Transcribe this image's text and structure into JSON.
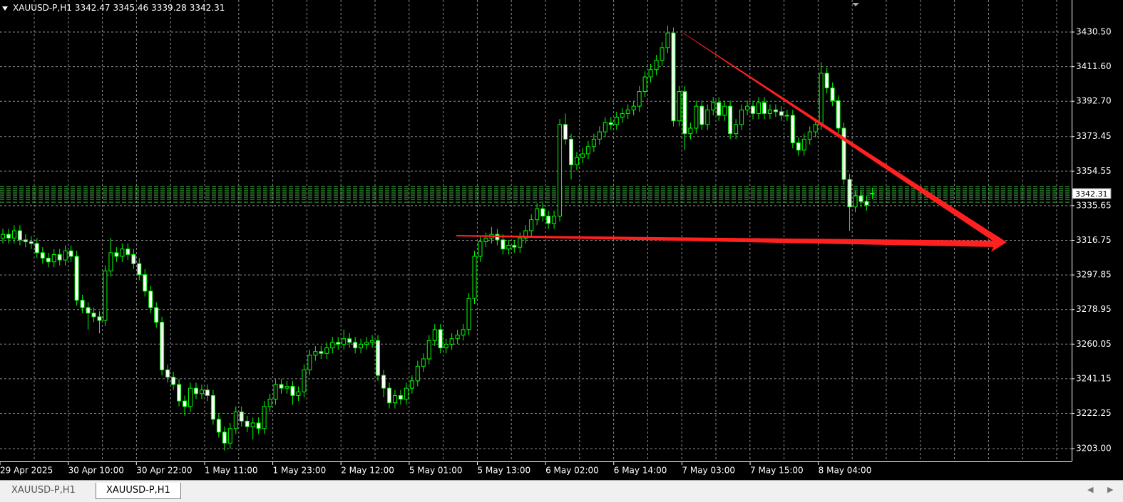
{
  "tabs": [
    "XAUUSD-P,H1",
    "XAUUSD-P,H1"
  ],
  "chart_data": {
    "type": "candlestick",
    "title": "XAUUSD-P,H1",
    "categories": [
      "29 Apr 2025",
      null,
      null,
      null,
      null,
      null,
      null,
      null,
      null,
      null,
      null,
      null,
      "30 Apr 10:00",
      null,
      null,
      null,
      null,
      null,
      null,
      null,
      null,
      null,
      null,
      null,
      "30 Apr 22:00",
      null,
      null,
      null,
      null,
      null,
      null,
      null,
      null,
      null,
      null,
      null,
      "1 May 11:00",
      null,
      null,
      null,
      null,
      null,
      null,
      null,
      null,
      null,
      null,
      null,
      "1 May 23:00",
      null,
      null,
      null,
      null,
      null,
      null,
      null,
      null,
      null,
      null,
      null,
      "2 May 12:00",
      null,
      null,
      null,
      null,
      null,
      null,
      null,
      null,
      null,
      null,
      null,
      "5 May 01:00",
      null,
      null,
      null,
      null,
      null,
      null,
      null,
      null,
      null,
      null,
      null,
      "5 May 13:00",
      null,
      null,
      null,
      null,
      null,
      null,
      null,
      null,
      null,
      null,
      null,
      "6 May 02:00",
      null,
      null,
      null,
      null,
      null,
      null,
      null,
      null,
      null,
      null,
      null,
      "6 May 14:00",
      null,
      null,
      null,
      null,
      null,
      null,
      null,
      null,
      null,
      null,
      null,
      "7 May 03:00",
      null,
      null,
      null,
      null,
      null,
      null,
      null,
      null,
      null,
      null,
      null,
      "7 May 15:00",
      null,
      null,
      null,
      null,
      null,
      null,
      null,
      null,
      null,
      null,
      null,
      "8 May 04:00",
      null,
      null,
      null,
      null,
      null,
      null,
      null,
      null,
      null
    ],
    "open": [
      3318,
      3320,
      3318,
      3322,
      3317,
      3316,
      3315,
      3310,
      3307,
      3305,
      3309,
      3306,
      3311,
      3308,
      3284,
      3280,
      3277,
      3275,
      3273,
      3300,
      3310,
      3308,
      3312,
      3309,
      3304,
      3298,
      3289,
      3280,
      3272,
      3246,
      3242,
      3238,
      3229,
      3226,
      3236,
      3233,
      3235,
      3232,
      3219,
      3212,
      3206,
      3214,
      3223,
      3218,
      3215,
      3217,
      3214,
      3226,
      3230,
      3238,
      3236,
      3237,
      3232,
      3234,
      3246,
      3254,
      3256,
      3255,
      3258,
      3261,
      3260,
      3263,
      3261,
      3258,
      3260,
      3261,
      3262,
      3243,
      3236,
      3228,
      3232,
      3230,
      3236,
      3240,
      3248,
      3252,
      3262,
      3268,
      3258,
      3260,
      3263,
      3265,
      3268,
      3285,
      3308,
      3316,
      3318,
      3320,
      3317,
      3312,
      3314,
      3313,
      3318,
      3322,
      3328,
      3334,
      3330,
      3326,
      3330,
      3380,
      3372,
      3358,
      3362,
      3364,
      3368,
      3372,
      3376,
      3381,
      3380,
      3384,
      3386,
      3388,
      3390,
      3398,
      3406,
      3410,
      3415,
      3422,
      3430,
      3382,
      3398,
      3375,
      3378,
      3390,
      3380,
      3388,
      3392,
      3385,
      3390,
      3375,
      3380,
      3388,
      3390,
      3386,
      3392,
      3386,
      3388,
      3387,
      3385,
      3385,
      3370,
      3366,
      3372,
      3376,
      3380,
      3408,
      3400,
      3393,
      3378,
      3350,
      3335,
      3341,
      3338,
      3342.47
    ],
    "high": [
      3323,
      3323,
      3325,
      3325,
      3320,
      3319,
      3318,
      3313,
      3310,
      3312,
      3312,
      3314,
      3314,
      3311,
      3287,
      3283,
      3280,
      3278,
      3303,
      3318,
      3313,
      3315,
      3315,
      3312,
      3307,
      3301,
      3292,
      3283,
      3275,
      3249,
      3245,
      3241,
      3232,
      3239,
      3239,
      3238,
      3238,
      3235,
      3222,
      3215,
      3217,
      3226,
      3226,
      3221,
      3220,
      3220,
      3229,
      3233,
      3241,
      3241,
      3240,
      3240,
      3237,
      3249,
      3257,
      3259,
      3259,
      3261,
      3264,
      3264,
      3268,
      3266,
      3264,
      3263,
      3264,
      3265,
      3265,
      3246,
      3239,
      3235,
      3235,
      3239,
      3243,
      3251,
      3255,
      3265,
      3271,
      3271,
      3263,
      3266,
      3268,
      3271,
      3288,
      3311,
      3319,
      3321,
      3324,
      3323,
      3320,
      3317,
      3317,
      3321,
      3325,
      3331,
      3337,
      3337,
      3333,
      3333,
      3383,
      3386,
      3375,
      3365,
      3367,
      3371,
      3375,
      3379,
      3384,
      3384,
      3387,
      3389,
      3391,
      3393,
      3401,
      3409,
      3413,
      3418,
      3425,
      3434,
      3433,
      3401,
      3401,
      3381,
      3393,
      3393,
      3391,
      3395,
      3395,
      3393,
      3393,
      3383,
      3391,
      3393,
      3393,
      3395,
      3395,
      3391,
      3391,
      3390,
      3388,
      3388,
      3373,
      3375,
      3379,
      3383,
      3414,
      3411,
      3403,
      3396,
      3381,
      3353,
      3344,
      3344,
      3341,
      3345.46
    ],
    "low": [
      3315,
      3315,
      3315,
      3314,
      3313,
      3312,
      3307,
      3304,
      3302,
      3302,
      3303,
      3303,
      3305,
      3281,
      3277,
      3268,
      3272,
      3266,
      3270,
      3297,
      3305,
      3305,
      3306,
      3301,
      3295,
      3286,
      3277,
      3269,
      3243,
      3239,
      3235,
      3226,
      3221,
      3223,
      3230,
      3230,
      3229,
      3216,
      3209,
      3202,
      3203,
      3211,
      3215,
      3212,
      3208,
      3211,
      3211,
      3223,
      3227,
      3233,
      3233,
      3227,
      3229,
      3231,
      3243,
      3251,
      3252,
      3252,
      3255,
      3257,
      3257,
      3258,
      3255,
      3255,
      3257,
      3258,
      3240,
      3231,
      3225,
      3225,
      3227,
      3227,
      3233,
      3237,
      3245,
      3249,
      3259,
      3255,
      3255,
      3257,
      3260,
      3262,
      3265,
      3282,
      3305,
      3313,
      3315,
      3314,
      3309,
      3309,
      3310,
      3310,
      3315,
      3319,
      3325,
      3327,
      3323,
      3323,
      3327,
      3369,
      3350,
      3355,
      3359,
      3361,
      3365,
      3369,
      3373,
      3377,
      3377,
      3381,
      3383,
      3385,
      3387,
      3395,
      3403,
      3407,
      3412,
      3419,
      3379,
      3379,
      3366,
      3372,
      3375,
      3377,
      3377,
      3385,
      3382,
      3382,
      3372,
      3372,
      3377,
      3385,
      3383,
      3383,
      3383,
      3383,
      3384,
      3382,
      3382,
      3367,
      3363,
      3363,
      3369,
      3373,
      3377,
      3397,
      3390,
      3375,
      3347,
      3322,
      3332,
      3335,
      3333,
      3339.28
    ],
    "close": [
      3320,
      3318,
      3322,
      3317,
      3316,
      3315,
      3310,
      3307,
      3305,
      3309,
      3306,
      3311,
      3308,
      3284,
      3280,
      3277,
      3275,
      3273,
      3300,
      3310,
      3308,
      3312,
      3309,
      3304,
      3298,
      3289,
      3280,
      3272,
      3246,
      3242,
      3238,
      3229,
      3226,
      3236,
      3233,
      3235,
      3232,
      3219,
      3212,
      3206,
      3214,
      3223,
      3218,
      3215,
      3217,
      3214,
      3226,
      3230,
      3238,
      3236,
      3237,
      3232,
      3234,
      3246,
      3254,
      3256,
      3255,
      3258,
      3261,
      3260,
      3263,
      3261,
      3258,
      3260,
      3261,
      3262,
      3243,
      3236,
      3228,
      3232,
      3230,
      3236,
      3240,
      3248,
      3252,
      3262,
      3268,
      3258,
      3260,
      3263,
      3265,
      3268,
      3285,
      3308,
      3316,
      3318,
      3320,
      3317,
      3312,
      3314,
      3313,
      3318,
      3322,
      3328,
      3334,
      3330,
      3326,
      3330,
      3380,
      3372,
      3358,
      3362,
      3364,
      3368,
      3372,
      3376,
      3381,
      3380,
      3384,
      3386,
      3388,
      3390,
      3398,
      3406,
      3410,
      3415,
      3422,
      3430,
      3382,
      3398,
      3375,
      3378,
      3390,
      3380,
      3388,
      3392,
      3385,
      3390,
      3375,
      3380,
      3388,
      3390,
      3386,
      3392,
      3386,
      3388,
      3387,
      3385,
      3385,
      3370,
      3366,
      3372,
      3376,
      3380,
      3408,
      3400,
      3393,
      3378,
      3350,
      3335,
      3341,
      3338,
      3336,
      3342.31
    ],
    "ylim": [
      3196,
      3448
    ],
    "yticks": [
      {
        "value": 3430.5,
        "label": "3430.50"
      },
      {
        "value": 3411.6,
        "label": "3411.60"
      },
      {
        "value": 3392.7,
        "label": "3392.70"
      },
      3373.45,
      3354.55,
      3335.65,
      3316.75,
      3297.85,
      3278.95,
      3260.05,
      3241.15,
      3222.25,
      {
        "value": 3203,
        "label": "3203.00"
      }
    ],
    "grid": true,
    "background": "#000000",
    "grid_color": "#8c8c8c",
    "wick_color": "#00ff00",
    "up_color": "#000000",
    "down_color": "#ffffff"
  }
}
